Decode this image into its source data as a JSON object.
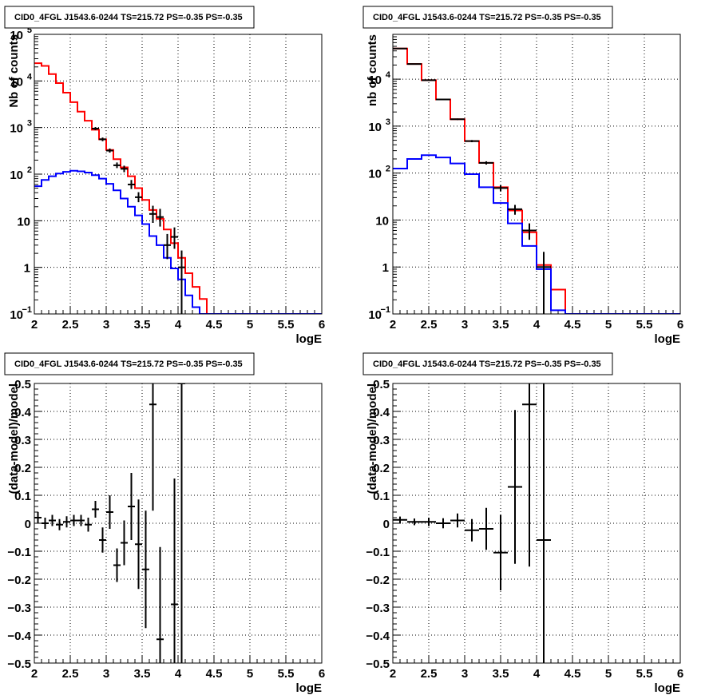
{
  "chart_data": [
    {
      "type": "step",
      "title": "CID0_4FGL J1543.6-0244 TS=215.72 PS=-0.35 PS=-0.35",
      "xlabel": "logE",
      "ylabel": "Nb of counts",
      "xlim": [
        2,
        6
      ],
      "ylim": [
        0.1,
        100000
      ],
      "yscale": "log",
      "grid": true,
      "xticks": [
        "2",
        "2.5",
        "3",
        "3.5",
        "4",
        "4.5",
        "5",
        "5.5",
        "6"
      ],
      "yticks": [
        {
          "value": 0.1,
          "label": "10",
          "sup": "−1"
        },
        {
          "value": 1,
          "label": "1",
          "sup": ""
        },
        {
          "value": 10,
          "label": "10",
          "sup": ""
        },
        {
          "value": 100,
          "label": "10",
          "sup": "2"
        },
        {
          "value": 1000,
          "label": "10",
          "sup": "3"
        },
        {
          "value": 10000,
          "label": "10",
          "sup": "4"
        },
        {
          "value": 100000,
          "label": "10",
          "sup": "5"
        }
      ],
      "bin_edges": [
        2.0,
        2.1,
        2.2,
        2.3,
        2.4,
        2.5,
        2.6,
        2.7,
        2.8,
        2.9,
        3.0,
        3.1,
        3.2,
        3.3,
        3.4,
        3.5,
        3.6,
        3.7,
        3.8,
        3.9,
        4.0,
        4.1,
        4.2,
        4.3,
        4.4,
        4.5,
        4.6,
        4.7,
        4.8,
        4.9,
        5.0,
        5.1,
        5.2,
        5.3,
        5.4,
        5.5,
        5.6,
        5.7,
        5.8,
        5.9,
        6.0
      ],
      "series": [
        {
          "role": "model-total",
          "color": "#ff0000",
          "values": [
            24000,
            21000,
            14000,
            9000,
            5600,
            3500,
            2200,
            1400,
            900,
            560,
            330,
            210,
            140,
            90,
            50,
            28,
            17,
            11,
            6.5,
            3.3,
            1.6,
            0.75,
            0.38,
            0.21,
            0.1,
            0.1,
            0.1,
            0.1,
            0.1,
            0.1,
            0.1,
            0.1,
            0.1,
            0.1,
            0.1,
            0.1,
            0.1,
            0.1,
            0.1,
            0.1
          ]
        },
        {
          "role": "model-component",
          "color": "#0000ff",
          "values": [
            55,
            75,
            90,
            103,
            112,
            118,
            115,
            108,
            95,
            80,
            62,
            45,
            30,
            20,
            13,
            8.5,
            4.7,
            3.0,
            1.6,
            0.95,
            0.55,
            0.25,
            0.14,
            0.1,
            0.1,
            0.1,
            0.1,
            0.1,
            0.1,
            0.1,
            0.1,
            0.1,
            0.1,
            0.1,
            0.1,
            0.1,
            0.1,
            0.1,
            0.1,
            0.1
          ]
        }
      ],
      "data_points": [
        {
          "x": 2.85,
          "y": 950,
          "lo": 880,
          "hi": 1020
        },
        {
          "x": 2.95,
          "y": 560,
          "lo": 510,
          "hi": 610
        },
        {
          "x": 3.05,
          "y": 320,
          "lo": 290,
          "hi": 355
        },
        {
          "x": 3.15,
          "y": 155,
          "lo": 135,
          "hi": 178
        },
        {
          "x": 3.25,
          "y": 130,
          "lo": 110,
          "hi": 152
        },
        {
          "x": 3.35,
          "y": 60,
          "lo": 48,
          "hi": 75
        },
        {
          "x": 3.45,
          "y": 32,
          "lo": 25,
          "hi": 41
        },
        {
          "x": 3.65,
          "y": 14,
          "lo": 9,
          "hi": 21
        },
        {
          "x": 3.75,
          "y": 12,
          "lo": 7.5,
          "hi": 18
        },
        {
          "x": 3.85,
          "y": 3.0,
          "lo": 1.5,
          "hi": 5.2
        },
        {
          "x": 3.95,
          "y": 4.5,
          "lo": 2.5,
          "hi": 7.2
        },
        {
          "x": 4.05,
          "y": 1.0,
          "lo": 0.1,
          "hi": 2.3
        }
      ]
    },
    {
      "type": "step",
      "title": "CID0_4FGL J1543.6-0244 TS=215.72 PS=-0.35 PS=-0.35",
      "xlabel": "logE",
      "ylabel": "nb of counts",
      "xlim": [
        2,
        6
      ],
      "ylim": [
        0.1,
        90000
      ],
      "yscale": "log",
      "grid": true,
      "xticks": [
        "2",
        "2.5",
        "3",
        "3.5",
        "4",
        "4.5",
        "5",
        "5.5",
        "6"
      ],
      "yticks": [
        {
          "value": 0.1,
          "label": "10",
          "sup": "−1"
        },
        {
          "value": 1,
          "label": "1",
          "sup": ""
        },
        {
          "value": 10,
          "label": "10",
          "sup": ""
        },
        {
          "value": 100,
          "label": "10",
          "sup": "2"
        },
        {
          "value": 1000,
          "label": "10",
          "sup": "3"
        },
        {
          "value": 10000,
          "label": "10",
          "sup": "4"
        }
      ],
      "bin_edges": [
        2.0,
        2.2,
        2.4,
        2.6,
        2.8,
        3.0,
        3.2,
        3.4,
        3.6,
        3.8,
        4.0,
        4.2,
        4.4,
        4.6,
        4.8,
        5.0,
        5.2,
        5.4,
        5.6,
        5.8,
        6.0
      ],
      "series": [
        {
          "role": "model-total",
          "color": "#ff0000",
          "values": [
            45000,
            21000,
            9500,
            3700,
            1400,
            480,
            165,
            50,
            16,
            5.5,
            1.1,
            0.33,
            0.1,
            0.1,
            0.1,
            0.1,
            0.1,
            0.1,
            0.1,
            0.1
          ]
        },
        {
          "role": "model-component",
          "color": "#0000ff",
          "values": [
            125,
            200,
            240,
            215,
            160,
            95,
            50,
            23,
            8.5,
            2.8,
            0.9,
            0.12,
            0.1,
            0.1,
            0.1,
            0.1,
            0.1,
            0.1,
            0.1,
            0.1
          ]
        }
      ],
      "data_points": [
        {
          "x": 2.1,
          "y": 45000,
          "lo": 44000,
          "hi": 46000
        },
        {
          "x": 2.3,
          "y": 21000,
          "lo": 20500,
          "hi": 21500
        },
        {
          "x": 2.5,
          "y": 9500,
          "lo": 9300,
          "hi": 9700
        },
        {
          "x": 2.7,
          "y": 3700,
          "lo": 3600,
          "hi": 3800
        },
        {
          "x": 2.9,
          "y": 1400,
          "lo": 1350,
          "hi": 1450
        },
        {
          "x": 3.1,
          "y": 480,
          "lo": 455,
          "hi": 505
        },
        {
          "x": 3.3,
          "y": 165,
          "lo": 152,
          "hi": 178
        },
        {
          "x": 3.5,
          "y": 48,
          "lo": 41,
          "hi": 55
        },
        {
          "x": 3.7,
          "y": 17,
          "lo": 13,
          "hi": 21
        },
        {
          "x": 3.9,
          "y": 6,
          "lo": 3.8,
          "hi": 8.5
        },
        {
          "x": 4.1,
          "y": 1,
          "lo": 0.1,
          "hi": 2.1
        }
      ]
    },
    {
      "type": "errorbar",
      "title": "CID0_4FGL J1543.6-0244 TS=215.72 PS=-0.35 PS=-0.35",
      "xlabel": "logE",
      "ylabel": "(data-model)/model",
      "xlim": [
        2,
        6
      ],
      "ylim": [
        -0.5,
        0.5
      ],
      "yscale": "linear",
      "grid": true,
      "xticks": [
        "2",
        "2.5",
        "3",
        "3.5",
        "4",
        "4.5",
        "5",
        "5.5",
        "6"
      ],
      "yticks": [
        "−0.5",
        "−0.4",
        "−0.3",
        "−0.2",
        "−0.1",
        "0",
        "0.1",
        "0.2",
        "0.3",
        "0.4",
        "0.5"
      ],
      "bin_width": 0.1,
      "data_points": [
        {
          "x": 2.05,
          "y": 0.02,
          "err": 0.02
        },
        {
          "x": 2.15,
          "y": 0.0,
          "err": 0.02
        },
        {
          "x": 2.25,
          "y": 0.01,
          "err": 0.02
        },
        {
          "x": 2.35,
          "y": -0.005,
          "err": 0.02
        },
        {
          "x": 2.45,
          "y": 0.005,
          "err": 0.02
        },
        {
          "x": 2.55,
          "y": 0.01,
          "err": 0.02
        },
        {
          "x": 2.65,
          "y": 0.01,
          "err": 0.02
        },
        {
          "x": 2.75,
          "y": -0.005,
          "err": 0.025
        },
        {
          "x": 2.85,
          "y": 0.05,
          "err": 0.03
        },
        {
          "x": 2.95,
          "y": -0.06,
          "err": 0.045
        },
        {
          "x": 3.05,
          "y": 0.04,
          "err": 0.06
        },
        {
          "x": 3.15,
          "y": -0.15,
          "err": 0.06
        },
        {
          "x": 3.25,
          "y": -0.07,
          "err": 0.08
        },
        {
          "x": 3.35,
          "y": 0.06,
          "err": 0.12
        },
        {
          "x": 3.45,
          "y": -0.075,
          "err": 0.16
        },
        {
          "x": 3.55,
          "y": -0.165,
          "err": 0.21
        },
        {
          "x": 3.65,
          "y": 0.425,
          "err": 0.38
        },
        {
          "x": 3.75,
          "y": -0.415,
          "err": 0.33
        },
        {
          "x": 3.95,
          "y": -0.29,
          "err": 0.45
        },
        {
          "x": 4.05,
          "y": 0.5,
          "err": 1.0
        }
      ]
    },
    {
      "type": "errorbar",
      "title": "CID0_4FGL J1543.6-0244 TS=215.72 PS=-0.35 PS=-0.35",
      "xlabel": "logE",
      "ylabel": "(data-model)/model",
      "xlim": [
        2,
        6
      ],
      "ylim": [
        -0.5,
        0.5
      ],
      "yscale": "linear",
      "grid": true,
      "xticks": [
        "2",
        "2.5",
        "3",
        "3.5",
        "4",
        "4.5",
        "5",
        "5.5",
        "6"
      ],
      "yticks": [
        "−0.5",
        "−0.4",
        "−0.3",
        "−0.2",
        "−0.1",
        "0",
        "0.1",
        "0.2",
        "0.3",
        "0.4",
        "0.5"
      ],
      "bin_width": 0.2,
      "data_points": [
        {
          "x": 2.1,
          "y": 0.012,
          "err": 0.012
        },
        {
          "x": 2.3,
          "y": 0.005,
          "err": 0.012
        },
        {
          "x": 2.5,
          "y": 0.005,
          "err": 0.015
        },
        {
          "x": 2.7,
          "y": 0.0,
          "err": 0.018
        },
        {
          "x": 2.9,
          "y": 0.01,
          "err": 0.025
        },
        {
          "x": 3.1,
          "y": -0.025,
          "err": 0.04
        },
        {
          "x": 3.3,
          "y": -0.02,
          "err": 0.075
        },
        {
          "x": 3.5,
          "y": -0.105,
          "err": 0.135
        },
        {
          "x": 3.7,
          "y": 0.13,
          "err": 0.275
        },
        {
          "x": 3.9,
          "y": 0.425,
          "err": 0.58
        },
        {
          "x": 4.1,
          "y": -0.06,
          "err": 1.0
        }
      ]
    }
  ]
}
